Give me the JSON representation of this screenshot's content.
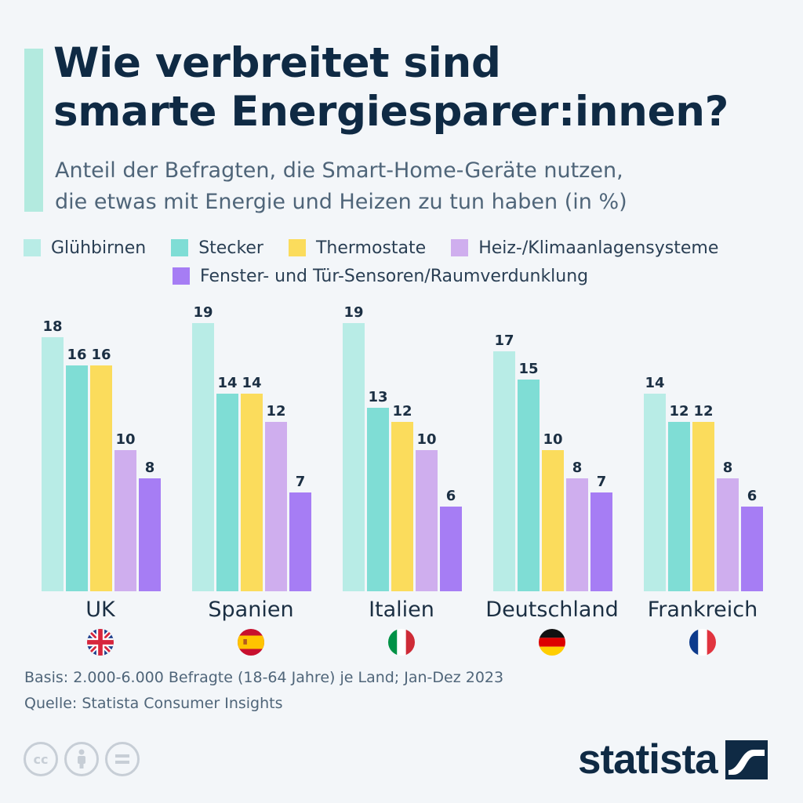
{
  "title_line1": "Wie verbreitet sind",
  "title_line2": "smarte Energiesparer:innen?",
  "subtitle_line1": "Anteil der Befragten, die Smart-Home-Geräte nutzen,",
  "subtitle_line2": "die etwas mit Energie und Heizen zu tun haben (in %)",
  "basis": "Basis: 2.000-6.000 Befragte (18-64 Jahre) je Land; Jan-Dez 2023",
  "source": "Quelle: Statista Consumer Insights",
  "logo_text": "statista",
  "license_icons": [
    "cc-icon",
    "attribution-icon",
    "no-derivatives-icon"
  ],
  "cc_label": "cc",
  "colors": {
    "background": "#f3f6f9",
    "title": "#0f2a44",
    "accent": "#b3eadf"
  },
  "chart_data": {
    "type": "bar",
    "categories": [
      "UK",
      "Spanien",
      "Italien",
      "Deutschland",
      "Frankreich"
    ],
    "flags": [
      "uk-flag-icon",
      "spain-flag-icon",
      "italy-flag-icon",
      "germany-flag-icon",
      "france-flag-icon"
    ],
    "series": [
      {
        "name": "Glühbirnen",
        "color": "#b8ece6",
        "values": [
          18,
          19,
          19,
          17,
          14
        ]
      },
      {
        "name": "Stecker",
        "color": "#7fddd5",
        "values": [
          16,
          14,
          13,
          15,
          12
        ]
      },
      {
        "name": "Thermostate",
        "color": "#fbdc5c",
        "values": [
          16,
          14,
          12,
          10,
          12
        ]
      },
      {
        "name": "Heiz-/Klimaanlagensysteme",
        "color": "#cfaeee",
        "values": [
          10,
          12,
          10,
          8,
          8
        ]
      },
      {
        "name": "Fenster- und Tür-Sensoren/Raumverdunklung",
        "color": "#a67df4",
        "values": [
          8,
          7,
          6,
          7,
          6
        ]
      }
    ],
    "ylim": [
      0,
      20
    ],
    "grid": false,
    "legend": "top",
    "data_labels": true
  }
}
